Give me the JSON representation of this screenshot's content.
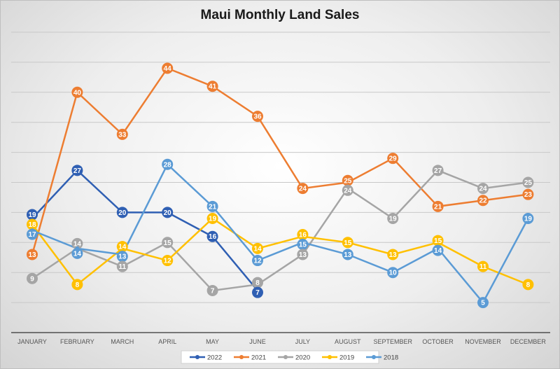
{
  "chart_data": {
    "type": "line",
    "title": "Maui Monthly Land Sales",
    "xlabel": "",
    "ylabel": "",
    "ylim": [
      0,
      50
    ],
    "grid": true,
    "legend": "bottom",
    "categories": [
      "JANUARY",
      "FEBRUARY",
      "MARCH",
      "APRIL",
      "MAY",
      "JUNE",
      "JULY",
      "AUGUST",
      "SEPTEMBER",
      "OCTOBER",
      "NOVEMBER",
      "DECEMBER"
    ],
    "series": [
      {
        "name": "2022",
        "color": "#2f5fb3",
        "values": [
          19,
          27,
          20,
          20,
          16,
          7,
          null,
          null,
          null,
          null,
          null,
          null
        ]
      },
      {
        "name": "2021",
        "color": "#ed7d31",
        "values": [
          13,
          40,
          33,
          44,
          41,
          36,
          24,
          25,
          29,
          21,
          22,
          23
        ]
      },
      {
        "name": "2020",
        "color": "#a5a5a5",
        "values": [
          9,
          14,
          11,
          15,
          7,
          8,
          13,
          24,
          19,
          27,
          24,
          25
        ]
      },
      {
        "name": "2019",
        "color": "#ffc000",
        "values": [
          18,
          8,
          14,
          12,
          19,
          14,
          16,
          15,
          13,
          15,
          11,
          8
        ]
      },
      {
        "name": "2018",
        "color": "#5b9bd5",
        "values": [
          17,
          14,
          13,
          28,
          21,
          12,
          15,
          13,
          10,
          14,
          5,
          19
        ]
      }
    ]
  }
}
